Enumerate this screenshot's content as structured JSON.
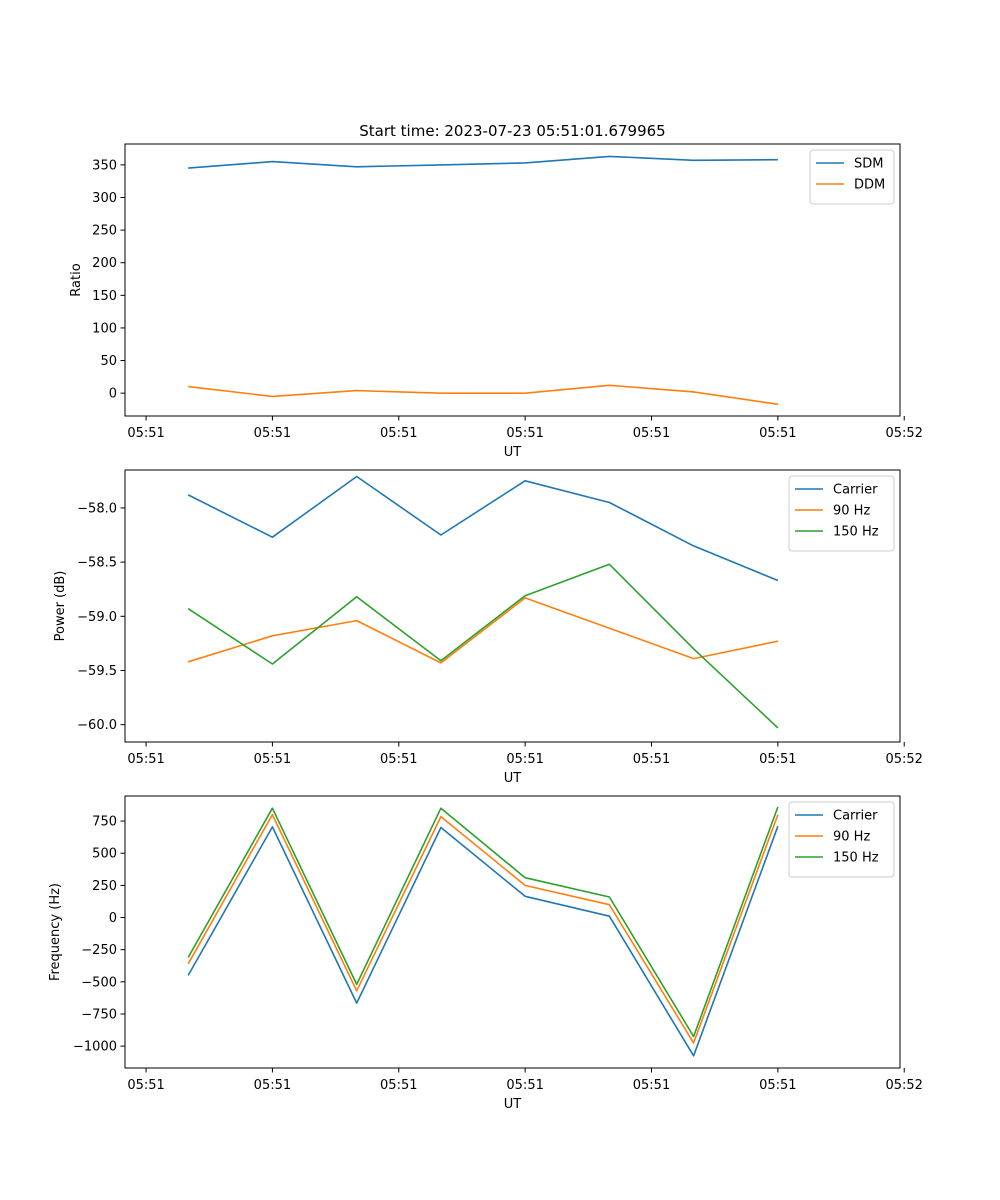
{
  "chart_data": [
    {
      "type": "line",
      "title": "Start time: 2023-07-23 05:51:01.679965",
      "xlabel": "UT",
      "ylabel": "Ratio",
      "xlim": [
        -0.25,
        8.95
      ],
      "ylim": [
        -35,
        382
      ],
      "x": [
        0.5,
        1.5,
        2.5,
        3.5,
        4.5,
        5.5,
        6.5,
        7.5
      ],
      "x_ticks": [
        0,
        1.5,
        3,
        4.5,
        6,
        7.5,
        9
      ],
      "x_tick_labels": [
        "05:51",
        "05:51",
        "05:51",
        "05:51",
        "05:51",
        "05:51",
        "05:52"
      ],
      "y_ticks": [
        0,
        50,
        100,
        150,
        200,
        250,
        300,
        350
      ],
      "y_tick_labels": [
        "0",
        "50",
        "100",
        "150",
        "200",
        "250",
        "300",
        "350"
      ],
      "legend_position": "top-right",
      "series": [
        {
          "name": "SDM",
          "color": "#1f77b4",
          "values": [
            345,
            355,
            347,
            350,
            353,
            363,
            357,
            358
          ]
        },
        {
          "name": "DDM",
          "color": "#ff7f0e",
          "values": [
            10,
            -5,
            4,
            0,
            0,
            12,
            2,
            -17
          ]
        }
      ]
    },
    {
      "type": "line",
      "title": "",
      "xlabel": "UT",
      "ylabel": "Power (dB)",
      "xlim": [
        -0.25,
        8.95
      ],
      "ylim": [
        -60.16,
        -57.65
      ],
      "x": [
        0.5,
        1.5,
        2.5,
        3.5,
        4.5,
        5.5,
        6.5,
        7.5
      ],
      "x_ticks": [
        0,
        1.5,
        3,
        4.5,
        6,
        7.5,
        9
      ],
      "x_tick_labels": [
        "05:51",
        "05:51",
        "05:51",
        "05:51",
        "05:51",
        "05:51",
        "05:52"
      ],
      "y_ticks": [
        -60.0,
        -59.5,
        -59.0,
        -58.5,
        -58.0
      ],
      "y_tick_labels": [
        "−60.0",
        "−59.5",
        "−59.0",
        "−58.5",
        "−58.0"
      ],
      "legend_position": "top-right",
      "series": [
        {
          "name": "Carrier",
          "color": "#1f77b4",
          "values": [
            -57.88,
            -58.27,
            -57.71,
            -58.25,
            -57.75,
            -57.95,
            -58.35,
            -58.67
          ]
        },
        {
          "name": "90 Hz",
          "color": "#ff7f0e",
          "values": [
            -59.42,
            -59.18,
            -59.04,
            -59.43,
            -58.83,
            -59.11,
            -59.39,
            -59.23
          ]
        },
        {
          "name": "150 Hz",
          "color": "#2ca02c",
          "values": [
            -58.93,
            -59.44,
            -58.82,
            -59.41,
            -58.81,
            -58.52,
            -59.3,
            -60.03
          ]
        }
      ]
    },
    {
      "type": "line",
      "title": "",
      "xlabel": "UT",
      "ylabel": "Frequency (Hz)",
      "xlim": [
        -0.25,
        8.95
      ],
      "ylim": [
        -1170,
        945
      ],
      "x": [
        0.5,
        1.5,
        2.5,
        3.5,
        4.5,
        5.5,
        6.5,
        7.5
      ],
      "x_ticks": [
        0,
        1.5,
        3,
        4.5,
        6,
        7.5,
        9
      ],
      "x_tick_labels": [
        "05:51",
        "05:51",
        "05:51",
        "05:51",
        "05:51",
        "05:51",
        "05:52"
      ],
      "y_ticks": [
        -1000,
        -750,
        -500,
        -250,
        0,
        250,
        500,
        750
      ],
      "y_tick_labels": [
        "−1000",
        "−750",
        "−500",
        "−250",
        "0",
        "250",
        "500",
        "750"
      ],
      "legend_position": "top-right",
      "series": [
        {
          "name": "Carrier",
          "color": "#1f77b4",
          "values": [
            -450,
            705,
            -665,
            700,
            165,
            10,
            -1075,
            710
          ]
        },
        {
          "name": "90 Hz",
          "color": "#ff7f0e",
          "values": [
            -360,
            800,
            -570,
            785,
            250,
            100,
            -975,
            800
          ]
        },
        {
          "name": "150 Hz",
          "color": "#2ca02c",
          "values": [
            -310,
            850,
            -520,
            850,
            310,
            160,
            -925,
            860
          ]
        }
      ]
    }
  ]
}
